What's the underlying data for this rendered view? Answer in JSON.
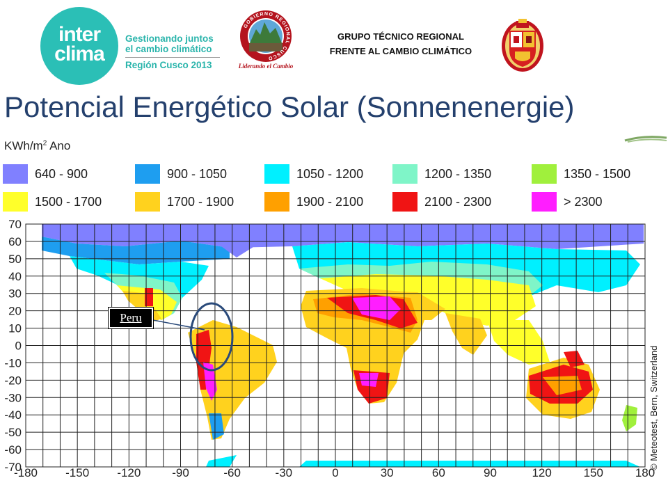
{
  "header": {
    "interclima_logo": {
      "word1": "inter",
      "word2": "clima"
    },
    "tagline": {
      "line1": "Gestionando juntos",
      "line2": "el cambio climático",
      "line3": "Región Cusco 2013"
    },
    "regional_gov_seal": {
      "ring_text": "GOBIERNO REGIONAL CUSCO",
      "motto": "Liderando el Cambio",
      "icon": "machu-picchu-seal"
    },
    "group_title": {
      "line1": "GRUPO TÉCNICO REGIONAL",
      "line2": "FRENTE AL CAMBIO CLIMÁTICO"
    },
    "crest": {
      "icon": "cusco-coat-of-arms"
    }
  },
  "page_title": "Potencial Energético Solar (Sonnenenergie)",
  "legend": {
    "unit": "KWh/m",
    "unit_sup": "2",
    "unit_suffix": " Ano",
    "items": [
      {
        "label": "640 - 900",
        "color": "#8080ff"
      },
      {
        "label": "900 - 1050",
        "color": "#1e9ef0"
      },
      {
        "label": "1050 - 1200",
        "color": "#00f0ff"
      },
      {
        "label": "1200 - 1350",
        "color": "#7ff5c8"
      },
      {
        "label": "1350 - 1500",
        "color": "#a0f03c"
      },
      {
        "label": "1500 - 1700",
        "color": "#ffff2a"
      },
      {
        "label": "1700 - 1900",
        "color": "#ffd21e"
      },
      {
        "label": "1900 - 2100",
        "color": "#ffa000"
      },
      {
        "label": "2100 - 2300",
        "color": "#f01414"
      },
      {
        "label": "> 2300",
        "color": "#ff1eff"
      }
    ]
  },
  "map": {
    "y_ticks": [
      "70",
      "60",
      "50",
      "40",
      "30",
      "20",
      "10",
      "0",
      "-10",
      "-20",
      "-30",
      "-40",
      "-50",
      "-60",
      "-70"
    ],
    "x_ticks": [
      "-180",
      "-150",
      "-120",
      "-90",
      "-60",
      "-30",
      "0",
      "30",
      "60",
      "90",
      "120",
      "150",
      "180"
    ],
    "lon_range": [
      -180,
      180
    ],
    "lat_range": [
      -70,
      70
    ],
    "grid": true,
    "highlight": {
      "label": "Peru",
      "lon": -72,
      "lat": 5
    }
  },
  "copyright": "© Meteotest, Bern, Switzerland"
}
